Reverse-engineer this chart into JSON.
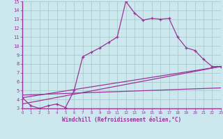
{
  "xlabel": "Windchill (Refroidissement éolien,°C)",
  "bg_color": "#cce8ee",
  "grid_color": "#aacccc",
  "line_color": "#993399",
  "xlim": [
    0,
    23
  ],
  "ylim": [
    3,
    15
  ],
  "xticks": [
    0,
    1,
    2,
    3,
    4,
    5,
    6,
    7,
    8,
    9,
    10,
    11,
    12,
    13,
    14,
    15,
    16,
    17,
    18,
    19,
    20,
    21,
    22,
    23
  ],
  "yticks": [
    3,
    4,
    5,
    6,
    7,
    8,
    9,
    10,
    11,
    12,
    13,
    14,
    15
  ],
  "line1_x": [
    0,
    1,
    2,
    3,
    4,
    5,
    6,
    7,
    8,
    9,
    10,
    11,
    12,
    13,
    14,
    15,
    16,
    17,
    18,
    19,
    20,
    21,
    22,
    23
  ],
  "line1_y": [
    4.2,
    3.3,
    3.0,
    3.3,
    3.5,
    3.1,
    5.0,
    8.8,
    9.3,
    9.8,
    10.4,
    11.0,
    15.0,
    13.7,
    12.9,
    13.1,
    13.0,
    13.1,
    11.0,
    9.8,
    9.5,
    8.5,
    7.7,
    7.7
  ],
  "line2_x": [
    0,
    23
  ],
  "line2_y": [
    4.2,
    7.7
  ],
  "line3_x": [
    0,
    23
  ],
  "line3_y": [
    3.5,
    7.7
  ],
  "line4_x": [
    0,
    23
  ],
  "line4_y": [
    4.5,
    5.3
  ]
}
